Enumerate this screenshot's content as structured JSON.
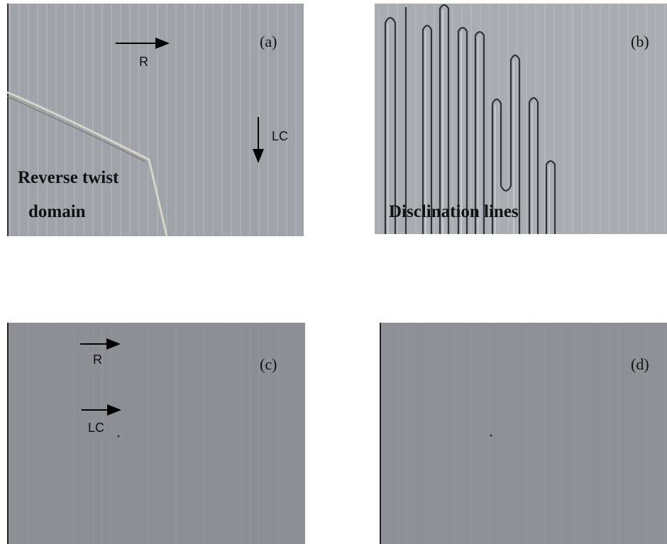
{
  "panels": [
    {
      "label": "(a)",
      "annotations": [
        "R",
        "LC",
        "Reverse twist",
        "domain"
      ]
    },
    {
      "label": "(b)",
      "annotations": [
        "Disclination lines"
      ]
    },
    {
      "label": "(c)",
      "annotations": [
        "R",
        "LC"
      ]
    },
    {
      "label": "(d)",
      "annotations": []
    }
  ]
}
